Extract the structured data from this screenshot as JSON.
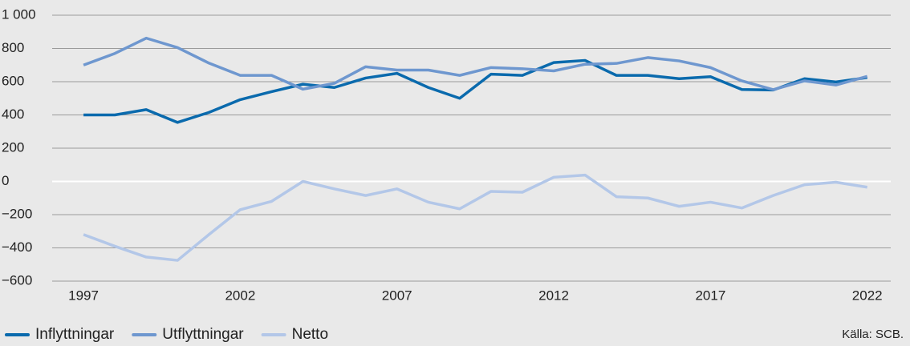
{
  "chart_data": {
    "type": "line",
    "x": [
      1997,
      1998,
      1999,
      2000,
      2001,
      2002,
      2003,
      2004,
      2005,
      2006,
      2007,
      2008,
      2009,
      2010,
      2011,
      2012,
      2013,
      2014,
      2015,
      2016,
      2017,
      2018,
      2019,
      2020,
      2021,
      2022
    ],
    "series": [
      {
        "name": "Inflyttningar",
        "color": "#0a6aad",
        "values": [
          400,
          400,
          432,
          355,
          415,
          492,
          540,
          585,
          565,
          622,
          650,
          565,
          500,
          645,
          638,
          715,
          728,
          638,
          638,
          618,
          630,
          553,
          550,
          618,
          598,
          625
        ]
      },
      {
        "name": "Utflyttningar",
        "color": "#6e97cf",
        "values": [
          700,
          770,
          862,
          805,
          712,
          638,
          638,
          555,
          590,
          690,
          670,
          670,
          638,
          685,
          678,
          665,
          705,
          710,
          745,
          725,
          685,
          605,
          552,
          605,
          580,
          632
        ]
      },
      {
        "name": "Netto",
        "color": "#b3c7e8",
        "values": [
          -320,
          -390,
          -455,
          -475,
          -320,
          -170,
          -120,
          0,
          -45,
          -85,
          -45,
          -125,
          -165,
          -60,
          -65,
          25,
          38,
          -92,
          -100,
          -150,
          -125,
          -160,
          -85,
          -20,
          -5,
          -35
        ]
      }
    ],
    "xlim": [
      1996,
      2022.75
    ],
    "xticks": [
      1997,
      2002,
      2007,
      2012,
      2017,
      2022
    ],
    "ylim": [
      -600,
      1000
    ],
    "yticks": [
      {
        "value": -600,
        "label": "−600"
      },
      {
        "value": -400,
        "label": "−400"
      },
      {
        "value": -200,
        "label": "−200"
      },
      0,
      200,
      400,
      600,
      800,
      {
        "value": 1000,
        "label": "1 000"
      }
    ],
    "grid": true,
    "legend": "bottom",
    "source": "Källa: SCB."
  }
}
